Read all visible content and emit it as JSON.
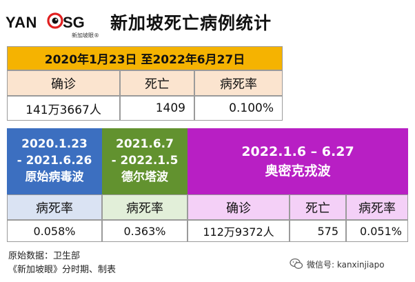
{
  "header": {
    "logo_left": "YAN",
    "logo_right": "SG",
    "logo_sub": "新加坡眼®",
    "title": "新加坡死亡病例统计"
  },
  "top_table": {
    "date_range": "2020年1月23日 至2022年6月27日",
    "headers": [
      "确诊",
      "死亡",
      "病死率"
    ],
    "values": [
      "141万3667人",
      "1409",
      "0.100%"
    ]
  },
  "waves": {
    "original": {
      "line1": "2020.1.23",
      "line2": "- 2021.6.26",
      "name": "原始病毒波"
    },
    "delta": {
      "line1": "2021.6.7",
      "line2": "- 2022.1.5",
      "name": "德尔塔波"
    },
    "omicron": {
      "line1": "2022.1.6 – 6.27",
      "name": "奥密克戎波"
    }
  },
  "bottom_table": {
    "original_header": "病死率",
    "original_value": "0.058%",
    "delta_header": "病死率",
    "delta_value": "0.363%",
    "omicron_headers": [
      "确诊",
      "死亡",
      "病死率"
    ],
    "omicron_values": [
      "112万9372人",
      "575",
      "0.051%"
    ]
  },
  "footer": {
    "source": "原始数据：卫生部",
    "credit": "《新加坡眼》分时期、制表",
    "wechat": "微信号: kanxinjiapo"
  },
  "colors": {
    "orange": "#f5b301",
    "peach": "#fbe4cf",
    "blue": "#3c6fc0",
    "light_blue": "#dae3f3",
    "green": "#62922f",
    "light_green": "#e2efd9",
    "magenta": "#b81fc4",
    "light_magenta": "#f4d0f7"
  }
}
